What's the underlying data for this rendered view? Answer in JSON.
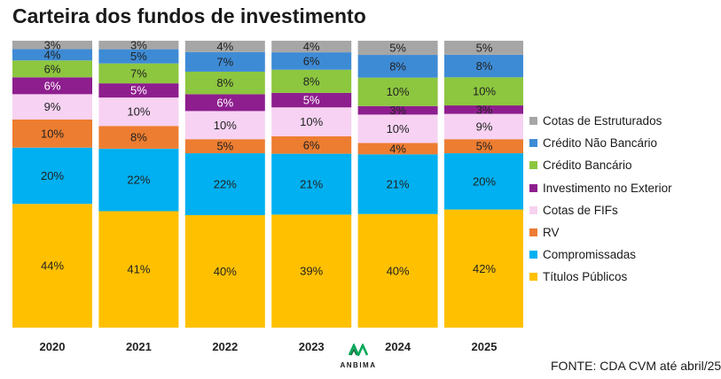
{
  "chart_data": {
    "type": "bar",
    "stacked": true,
    "title": "Carteira dos fundos de investimento",
    "categories": [
      "2020",
      "2021",
      "2022",
      "2023",
      "2024",
      "2025"
    ],
    "series": [
      {
        "name": "Títulos Públicos",
        "color": "#FFC000",
        "values": [
          44,
          41,
          40,
          39,
          40,
          42
        ]
      },
      {
        "name": "Compromissadas",
        "color": "#00B0F0",
        "values": [
          20,
          22,
          22,
          21,
          21,
          20
        ]
      },
      {
        "name": "RV",
        "color": "#ED7D31",
        "values": [
          10,
          8,
          5,
          6,
          4,
          5
        ]
      },
      {
        "name": "Cotas de FIFs",
        "color": "#F7D2F2",
        "values": [
          9,
          10,
          10,
          10,
          10,
          9
        ]
      },
      {
        "name": "Investimento no Exterior",
        "color": "#8E1E8E",
        "values": [
          6,
          5,
          6,
          5,
          3,
          3
        ]
      },
      {
        "name": "Crédito Bancário",
        "color": "#8DC63F",
        "values": [
          6,
          7,
          8,
          8,
          10,
          10
        ]
      },
      {
        "name": "Crédito Não Bancário",
        "color": "#3E8BD5",
        "values": [
          4,
          5,
          7,
          6,
          8,
          8
        ]
      },
      {
        "name": "Cotas de Estruturados",
        "color": "#A6A6A6",
        "values": [
          3,
          3,
          4,
          4,
          5,
          5
        ]
      }
    ],
    "value_suffix": "%",
    "ylim": [
      0,
      100
    ],
    "legend_position": "right",
    "grid": false
  },
  "logo": {
    "name": "ANBIMA",
    "accent": "#00A859"
  },
  "source": "FONTE: CDA CVM até abril/25"
}
